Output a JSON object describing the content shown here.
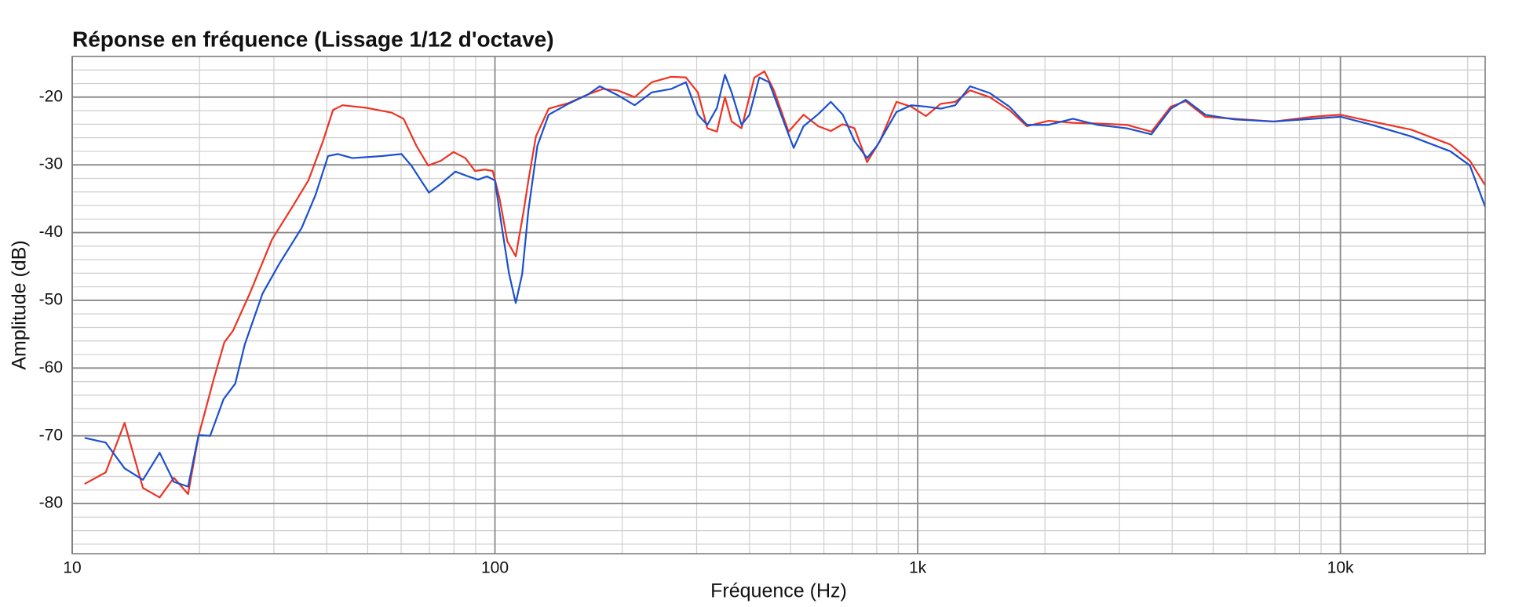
{
  "chart_data": {
    "type": "line",
    "title": "Réponse en fréquence (Lissage 1/12 d'octave)",
    "x_label": "Fréquence (Hz)",
    "y_label": "Amplitude (dB)",
    "xscale": "log",
    "grid": true,
    "xlim": [
      10,
      22000
    ],
    "ylim": [
      -87.4,
      -14
    ],
    "xticks": [
      10,
      100,
      {
        "value": 1000,
        "label": "1k"
      },
      {
        "value": 10000,
        "label": "10k"
      }
    ],
    "yticks": [
      -80,
      -70,
      -60,
      -50,
      -40,
      -30,
      -20
    ],
    "xticks_minor": [
      20,
      30,
      40,
      50,
      60,
      70,
      80,
      90,
      200,
      300,
      400,
      500,
      600,
      700,
      800,
      900,
      2000,
      3000,
      4000,
      5000,
      6000,
      7000,
      8000,
      9000,
      20000
    ],
    "yticks_minor": [
      -86,
      -84,
      -82,
      -78,
      -76,
      -74,
      -72,
      -68,
      -66,
      -64,
      -62,
      -58,
      -56,
      -54,
      -52,
      -48,
      -46,
      -44,
      -42,
      -38,
      -36,
      -34,
      -32,
      -28,
      -26,
      -24,
      -22,
      -18,
      -16
    ],
    "series": [
      {
        "color": "#ee3322",
        "x": [
          10.7,
          12.0,
          13.3,
          14.7,
          16.1,
          17.4,
          18.8,
          19.9,
          21.6,
          22.9,
          24.0,
          26.3,
          29.7,
          33.4,
          36.2,
          39.2,
          41.4,
          43.6,
          49.9,
          57.0,
          60.8,
          65.2,
          69.5,
          74.5,
          79.8,
          85.1,
          89.7,
          94.6,
          98.8,
          102.5,
          107,
          112,
          117,
          120,
          125,
          134,
          149,
          166,
          180,
          195,
          214,
          235,
          261,
          283,
          302,
          318,
          335,
          350,
          363,
          383,
          411,
          434,
          457,
          495,
          537,
          582,
          623,
          665,
          709,
          759,
          814,
          891,
          965,
          1046,
          1133,
          1227,
          1330,
          1480,
          1647,
          1813,
          2039,
          2330,
          2663,
          3125,
          3572,
          3972,
          4305,
          4790,
          5621,
          6960,
          8617,
          10000,
          11867,
          14700,
          18200,
          20250,
          22000
        ],
        "values": [
          -77.1,
          -75.4,
          -68.1,
          -77.7,
          -79.1,
          -76.2,
          -78.6,
          -70,
          -61.7,
          -56.2,
          -54.5,
          -49,
          -41,
          -35.9,
          -32.3,
          -26.5,
          -21.9,
          -21.2,
          -21.6,
          -22.3,
          -23.2,
          -27.2,
          -30.1,
          -29.4,
          -28.1,
          -29,
          -30.9,
          -30.7,
          -30.9,
          -34.9,
          -41.3,
          -43.5,
          -36.7,
          -32.3,
          -25.8,
          -21.7,
          -20.9,
          -19.6,
          -18.8,
          -19,
          -20,
          -17.8,
          -17,
          -17.1,
          -19.3,
          -24.6,
          -25.1,
          -20,
          -23.6,
          -24.6,
          -17.1,
          -16.2,
          -19,
          -25.1,
          -22.6,
          -24.3,
          -25,
          -24,
          -24.6,
          -29.6,
          -26.5,
          -20.7,
          -21.4,
          -22.8,
          -21,
          -20.7,
          -19,
          -20,
          -21.9,
          -24.3,
          -23.5,
          -23.8,
          -23.9,
          -24.1,
          -25.1,
          -21.4,
          -20.6,
          -22.9,
          -23.2,
          -23.6,
          -22.9,
          -22.6,
          -23.6,
          -24.8,
          -27,
          -29.4,
          -33
        ]
      },
      {
        "color": "#1a4fcf",
        "x": [
          10.7,
          12.0,
          13.3,
          14.7,
          16.1,
          17.4,
          18.8,
          19.9,
          21.2,
          22.8,
          24.3,
          25.6,
          28.2,
          30.9,
          34.9,
          37.6,
          40.3,
          42.5,
          46.0,
          54.0,
          60.1,
          63.4,
          69.8,
          74.5,
          80.6,
          86.4,
          91.2,
          95.7,
          100,
          103.6,
          108,
          112,
          116,
          120,
          126,
          134,
          149,
          166,
          177,
          195,
          214,
          235,
          261,
          283,
          302,
          318,
          335,
          350,
          363,
          383,
          400,
          422,
          445,
          482,
          509,
          537,
          582,
          623,
          665,
          709,
          759,
          801,
          891,
          965,
          1046,
          1133,
          1227,
          1330,
          1480,
          1647,
          1813,
          2039,
          2330,
          2663,
          3125,
          3572,
          3972,
          4305,
          4790,
          5621,
          6960,
          8617,
          10000,
          11867,
          14700,
          18200,
          20250,
          22000
        ],
        "values": [
          -70.3,
          -71,
          -74.8,
          -76.5,
          -72.5,
          -76.8,
          -77.5,
          -69.9,
          -70,
          -64.6,
          -62.3,
          -56.5,
          -49,
          -44.6,
          -39.3,
          -34.5,
          -28.7,
          -28.4,
          -29,
          -28.7,
          -28.4,
          -30.1,
          -34.1,
          -32.8,
          -31,
          -31.7,
          -32.2,
          -31.7,
          -32.3,
          -38.8,
          -46.1,
          -50.4,
          -46.1,
          -36.7,
          -27.2,
          -22.6,
          -21,
          -19.6,
          -18.4,
          -19.7,
          -21.2,
          -19.3,
          -18.8,
          -17.8,
          -22.6,
          -24.1,
          -21.6,
          -16.7,
          -19.3,
          -24.1,
          -22.6,
          -17.1,
          -17.8,
          -23.6,
          -27.5,
          -24.3,
          -22.5,
          -20.7,
          -22.6,
          -26.5,
          -29,
          -27.2,
          -22.2,
          -21.2,
          -21.4,
          -21.7,
          -21.2,
          -18.4,
          -19.4,
          -21.4,
          -24.1,
          -24.1,
          -23.2,
          -24.1,
          -24.6,
          -25.5,
          -21.7,
          -20.4,
          -22.6,
          -23.3,
          -23.6,
          -23.2,
          -22.9,
          -24.1,
          -25.8,
          -28,
          -30.1,
          -36.2
        ]
      }
    ]
  }
}
